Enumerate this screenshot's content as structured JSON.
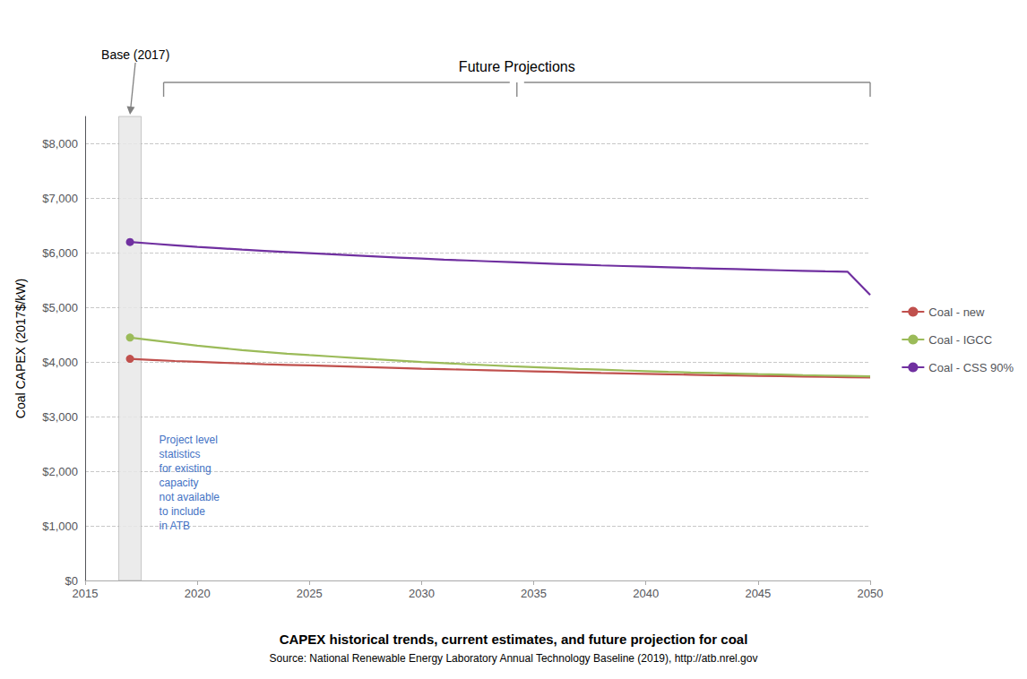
{
  "chart_data": {
    "type": "line",
    "title": "CAPEX historical trends, current estimates, and future projection for coal",
    "subtitle": "Source: National Renewable Energy Laboratory Annual Technology Baseline (2019), http://atb.nrel.gov",
    "ylabel": "Coal CAPEX (2017$/kW)",
    "x": [
      2017,
      2018,
      2019,
      2020,
      2021,
      2022,
      2023,
      2024,
      2025,
      2026,
      2027,
      2028,
      2029,
      2030,
      2031,
      2032,
      2033,
      2034,
      2035,
      2036,
      2037,
      2038,
      2039,
      2040,
      2041,
      2042,
      2043,
      2044,
      2045,
      2046,
      2047,
      2048,
      2049,
      2050
    ],
    "xlim": [
      2015,
      2050
    ],
    "xticks": [
      2015,
      2020,
      2025,
      2030,
      2035,
      2040,
      2045,
      2050
    ],
    "ylim": [
      0,
      8500
    ],
    "yticks": [
      {
        "value": 0,
        "label": "$0"
      },
      {
        "value": 1000,
        "label": "$1,000"
      },
      {
        "value": 2000,
        "label": "$2,000"
      },
      {
        "value": 3000,
        "label": "$3,000"
      },
      {
        "value": 4000,
        "label": "$4,000"
      },
      {
        "value": 5000,
        "label": "$5,000"
      },
      {
        "value": 6000,
        "label": "$6,000"
      },
      {
        "value": 7000,
        "label": "$7,000"
      },
      {
        "value": 8000,
        "label": "$8,000"
      }
    ],
    "grid": true,
    "legend": "right",
    "marker": "circle",
    "series": [
      {
        "name": "Coal - new",
        "color": "#c0504d",
        "values": [
          4060,
          4040,
          4020,
          4005,
          3990,
          3975,
          3960,
          3950,
          3940,
          3928,
          3916,
          3904,
          3892,
          3880,
          3870,
          3860,
          3850,
          3840,
          3830,
          3820,
          3810,
          3800,
          3792,
          3784,
          3776,
          3768,
          3760,
          3755,
          3748,
          3742,
          3736,
          3730,
          3724,
          3718
        ]
      },
      {
        "name": "Coal - IGCC",
        "color": "#9bbb59",
        "values": [
          4450,
          4400,
          4350,
          4300,
          4260,
          4220,
          4185,
          4155,
          4128,
          4102,
          4076,
          4050,
          4026,
          4002,
          3982,
          3960,
          3942,
          3924,
          3908,
          3892,
          3876,
          3862,
          3848,
          3835,
          3822,
          3810,
          3800,
          3790,
          3780,
          3771,
          3762,
          3754,
          3747,
          3740
        ]
      },
      {
        "name": "Coal - CSS 90%",
        "color": "#7030a0",
        "values": [
          6200,
          6170,
          6140,
          6110,
          6085,
          6060,
          6038,
          6016,
          5995,
          5974,
          5954,
          5934,
          5915,
          5896,
          5878,
          5862,
          5846,
          5830,
          5815,
          5800,
          5786,
          5772,
          5760,
          5748,
          5736,
          5724,
          5714,
          5703,
          5692,
          5682,
          5672,
          5662,
          5654,
          5230
        ]
      }
    ],
    "annotations": [
      {
        "text": "Base (2017)",
        "x": 2017
      },
      {
        "text": "Future Projections"
      },
      {
        "text": "Project level\nstatistics\nfor existing\ncapacity\nnot available\nto include\nin ATB",
        "x": 2018.3,
        "y": 2700,
        "color": "#4472c4"
      }
    ]
  }
}
